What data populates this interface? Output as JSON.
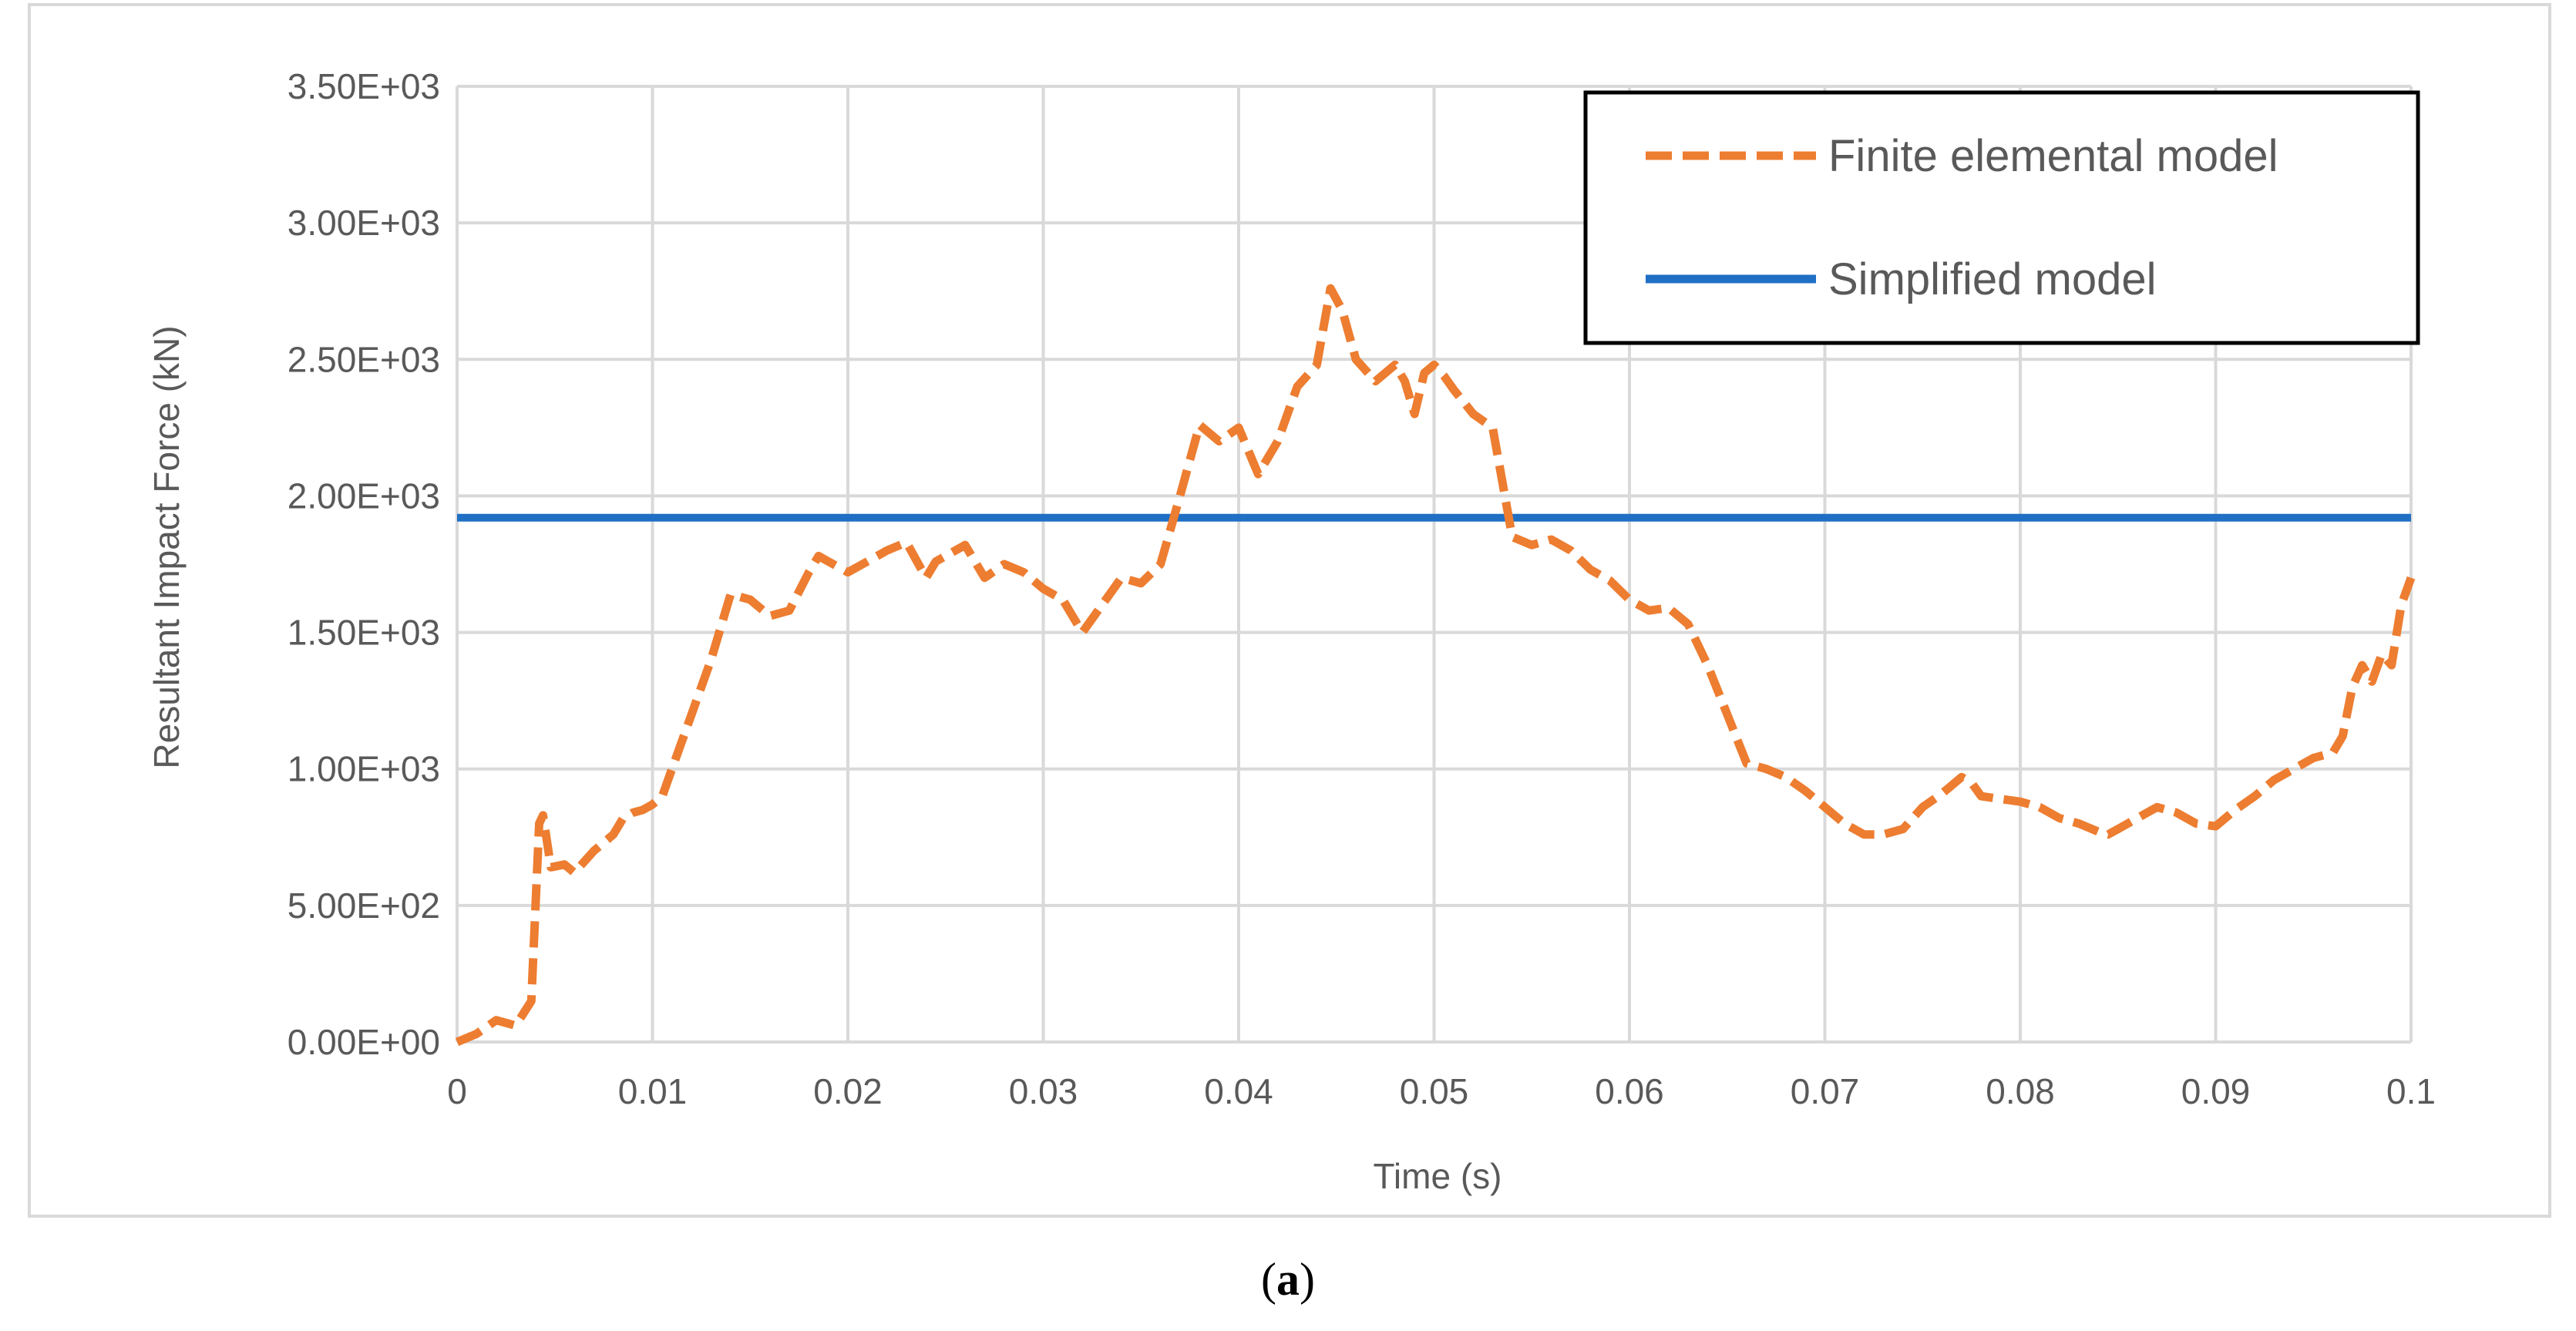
{
  "chart_data": {
    "type": "line",
    "xlabel": "Time (s)",
    "ylabel": "Resultant Impact Force (kN)",
    "xlim": [
      0,
      0.1
    ],
    "ylim": [
      0,
      3500
    ],
    "x_ticks": [
      "0",
      "0.01",
      "0.02",
      "0.03",
      "0.04",
      "0.05",
      "0.06",
      "0.07",
      "0.08",
      "0.09",
      "0.1"
    ],
    "x_tick_values": [
      0,
      0.01,
      0.02,
      0.03,
      0.04,
      0.05,
      0.06,
      0.07,
      0.08,
      0.09,
      0.1
    ],
    "y_ticks": [
      "0.00E+00",
      "5.00E+02",
      "1.00E+03",
      "1.50E+03",
      "2.00E+03",
      "2.50E+03",
      "3.00E+03",
      "3.50E+03"
    ],
    "y_tick_values": [
      0,
      500,
      1000,
      1500,
      2000,
      2500,
      3000,
      3500
    ],
    "grid": true,
    "legend_position": "top-right",
    "series": [
      {
        "name": "Finite elemental model",
        "style": "dashed",
        "color": "#ED7D31",
        "x": [
          0,
          0.001,
          0.002,
          0.003,
          0.0038,
          0.0042,
          0.0044,
          0.0048,
          0.0055,
          0.006,
          0.007,
          0.008,
          0.0085,
          0.009,
          0.0095,
          0.01,
          0.0105,
          0.011,
          0.012,
          0.013,
          0.014,
          0.015,
          0.016,
          0.017,
          0.018,
          0.0185,
          0.019,
          0.02,
          0.021,
          0.022,
          0.023,
          0.024,
          0.0245,
          0.025,
          0.026,
          0.027,
          0.028,
          0.029,
          0.03,
          0.031,
          0.032,
          0.033,
          0.034,
          0.035,
          0.036,
          0.037,
          0.038,
          0.039,
          0.04,
          0.041,
          0.042,
          0.043,
          0.044,
          0.0447,
          0.0453,
          0.046,
          0.047,
          0.048,
          0.0485,
          0.049,
          0.0495,
          0.05,
          0.0505,
          0.051,
          0.052,
          0.053,
          0.054,
          0.055,
          0.056,
          0.057,
          0.058,
          0.059,
          0.06,
          0.061,
          0.062,
          0.063,
          0.064,
          0.065,
          0.066,
          0.067,
          0.068,
          0.069,
          0.07,
          0.071,
          0.072,
          0.073,
          0.074,
          0.075,
          0.076,
          0.077,
          0.0775,
          0.078,
          0.079,
          0.08,
          0.081,
          0.082,
          0.083,
          0.084,
          0.0845,
          0.085,
          0.086,
          0.087,
          0.088,
          0.089,
          0.09,
          0.091,
          0.092,
          0.093,
          0.094,
          0.095,
          0.096,
          0.0965,
          0.097,
          0.0975,
          0.098,
          0.0985,
          0.099,
          0.0995,
          0.1
        ],
        "values": [
          0,
          30,
          80,
          60,
          150,
          800,
          830,
          640,
          650,
          620,
          700,
          760,
          820,
          840,
          850,
          870,
          900,
          1000,
          1200,
          1400,
          1640,
          1620,
          1560,
          1580,
          1720,
          1780,
          1760,
          1720,
          1760,
          1800,
          1830,
          1700,
          1760,
          1780,
          1820,
          1700,
          1750,
          1720,
          1660,
          1620,
          1500,
          1600,
          1700,
          1680,
          1750,
          2000,
          2260,
          2200,
          2250,
          2080,
          2200,
          2400,
          2480,
          2760,
          2680,
          2500,
          2420,
          2480,
          2420,
          2300,
          2450,
          2480,
          2440,
          2390,
          2300,
          2250,
          1850,
          1820,
          1840,
          1800,
          1730,
          1690,
          1620,
          1580,
          1590,
          1530,
          1380,
          1200,
          1020,
          1000,
          970,
          920,
          860,
          800,
          760,
          760,
          780,
          860,
          910,
          970,
          950,
          900,
          890,
          880,
          860,
          820,
          800,
          770,
          760,
          780,
          820,
          860,
          840,
          800,
          790,
          850,
          900,
          960,
          1000,
          1040,
          1060,
          1120,
          1300,
          1380,
          1320,
          1420,
          1380,
          1600,
          1700
        ]
      },
      {
        "name": "Simplified model",
        "style": "solid",
        "color": "#1F6FC5",
        "x": [
          0,
          0.1
        ],
        "values": [
          1920,
          1920
        ]
      }
    ]
  },
  "caption": {
    "open": "(",
    "letter": "a",
    "close": ")"
  }
}
